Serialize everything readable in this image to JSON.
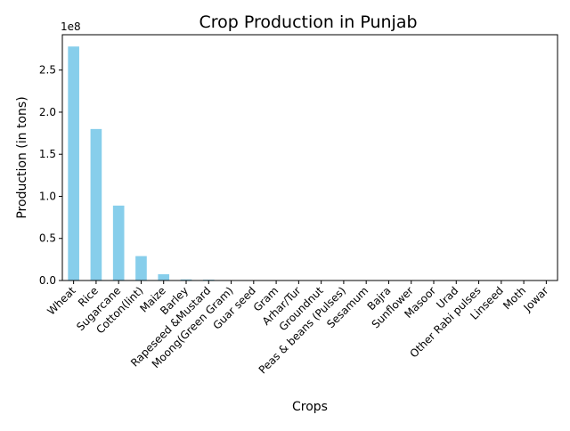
{
  "chart_data": {
    "type": "bar",
    "title": "Crop Production in Punjab",
    "xlabel": "Crops",
    "ylabel": "Production (in tons)",
    "y_offset_text": "1e8",
    "ylim": [
      0,
      292000000.0
    ],
    "yticks": [
      0,
      50000000.0,
      100000000.0,
      150000000.0,
      200000000.0,
      250000000.0
    ],
    "ytick_labels": [
      "0.0",
      "0.5",
      "1.0",
      "1.5",
      "2.0",
      "2.5"
    ],
    "bar_color": "#87ceeb",
    "grid": false,
    "categories": [
      "Wheat",
      "Rice",
      "Sugarcane",
      "Cotton(lint)",
      "Maize",
      "Barley",
      "Rapeseed &Mustard",
      "Moong(Green Gram)",
      "Guar seed",
      "Gram",
      "Arhar/Tur",
      "Groundnut",
      "Peas & beans (Pulses)",
      "Sesamum",
      "Bajra",
      "Sunflower",
      "Masoor",
      "Urad",
      "Other  Rabi pulses",
      "Linseed",
      "Moth",
      "Jowar"
    ],
    "values": [
      278000000,
      180000000,
      89000000,
      29000000,
      7500000,
      1300000,
      1000000,
      300000,
      200000,
      150000,
      120000,
      100000,
      80000,
      60000,
      50000,
      40000,
      30000,
      25000,
      20000,
      10000,
      5000,
      3000
    ]
  }
}
